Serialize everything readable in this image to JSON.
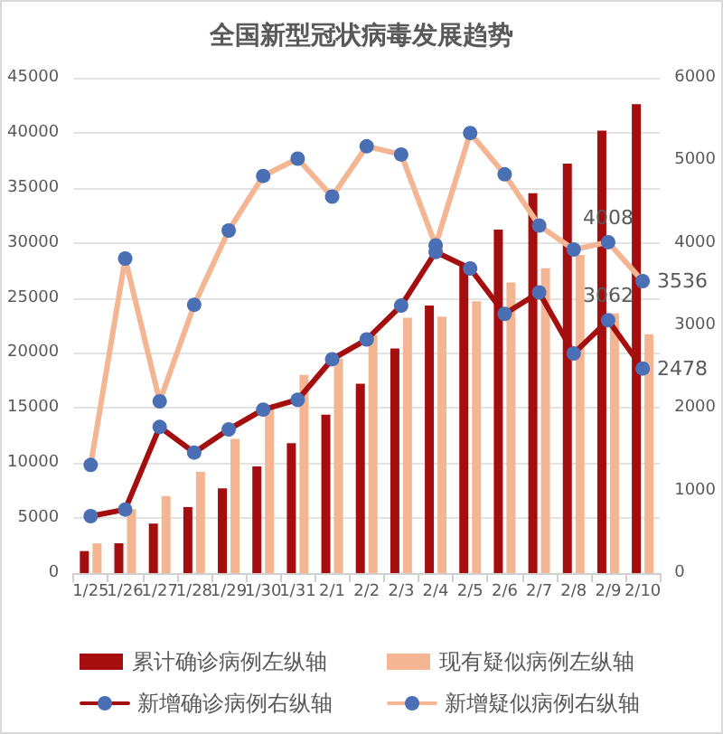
{
  "chart_data": {
    "type": "bar",
    "title": "全国新型冠状病毒发展趋势",
    "categories": [
      "1/25",
      "1/26",
      "1/27",
      "1/28",
      "1/29",
      "1/30",
      "1/31",
      "2/1",
      "2/2",
      "2/3",
      "2/4",
      "2/5",
      "2/6",
      "2/7",
      "2/8",
      "2/9",
      "2/10"
    ],
    "series": [
      {
        "name": "累计确诊病例左纵轴",
        "color": "#a50e0e",
        "values": [
          2000,
          2700,
          4500,
          6000,
          7700,
          9700,
          11800,
          14400,
          17200,
          20400,
          24300,
          28000,
          31200,
          34500,
          37200,
          40200,
          42600
        ]
      },
      {
        "name": "现有疑似病例左纵轴",
        "color": "#f4b593",
        "values": [
          2700,
          5800,
          7000,
          9200,
          12200,
          15200,
          18000,
          19500,
          21600,
          23200,
          23300,
          24700,
          26400,
          27700,
          28900,
          23600,
          21700
        ]
      },
      {
        "name": "新增确诊病例右纵轴",
        "type": "line",
        "axis": "y2",
        "color": "#a50e0e",
        "colors": [
          "#4a6fb5",
          "#4a6fb5",
          "#4a6fb5",
          "#4a6fb5",
          "#4a6fb5",
          "#4a6fb5",
          "#4a6fb5",
          "#4a6fb5",
          "#4a6fb5",
          "#4a6fb5",
          "#4a6fb5",
          "#4a6fb5",
          "#4a6fb5",
          "#4a6fb5",
          "#4a6fb5",
          "#4a6fb5",
          "#4a6fb5"
        ],
        "values": [
          690,
          770,
          1770,
          1460,
          1740,
          1980,
          2100,
          2590,
          2830,
          3240,
          3890,
          3690,
          3140,
          3400,
          2660,
          3062,
          2478
        ],
        "value_labels": [
          null,
          null,
          null,
          null,
          null,
          null,
          null,
          null,
          null,
          null,
          null,
          null,
          null,
          null,
          null,
          "3062",
          "2478"
        ]
      },
      {
        "name": "新增疑似病例右纵轴",
        "type": "line",
        "axis": "y2",
        "color": "#f4b593",
        "colors": [
          "#4a6fb5",
          "#4a6fb5",
          "#4a6fb5",
          "#4a6fb5",
          "#4a6fb5",
          "#4a6fb5",
          "#4a6fb5",
          "#4a6fb5",
          "#4a6fb5",
          "#4a6fb5",
          "#4a6fb5",
          "#4a6fb5",
          "#4a6fb5",
          "#4a6fb5",
          "#4a6fb5",
          "#4a6fb5",
          "#4a6fb5"
        ],
        "values": [
          1310,
          3810,
          2080,
          3250,
          4150,
          4810,
          5020,
          4560,
          5170,
          5070,
          3970,
          5330,
          4830,
          4210,
          3920,
          4008,
          3536
        ],
        "value_labels": [
          null,
          null,
          null,
          null,
          null,
          null,
          null,
          null,
          null,
          null,
          null,
          null,
          null,
          null,
          null,
          "4008",
          "3536"
        ]
      }
    ],
    "ylim": [
      0,
      45000
    ],
    "yticks": [
      0,
      5000,
      10000,
      15000,
      20000,
      25000,
      30000,
      35000,
      40000,
      45000
    ],
    "y2lim": [
      0,
      6000
    ],
    "y2ticks": [
      0,
      1000,
      2000,
      3000,
      4000,
      5000,
      6000
    ],
    "grid": "y",
    "legend": "bottom",
    "marker": "circle"
  }
}
